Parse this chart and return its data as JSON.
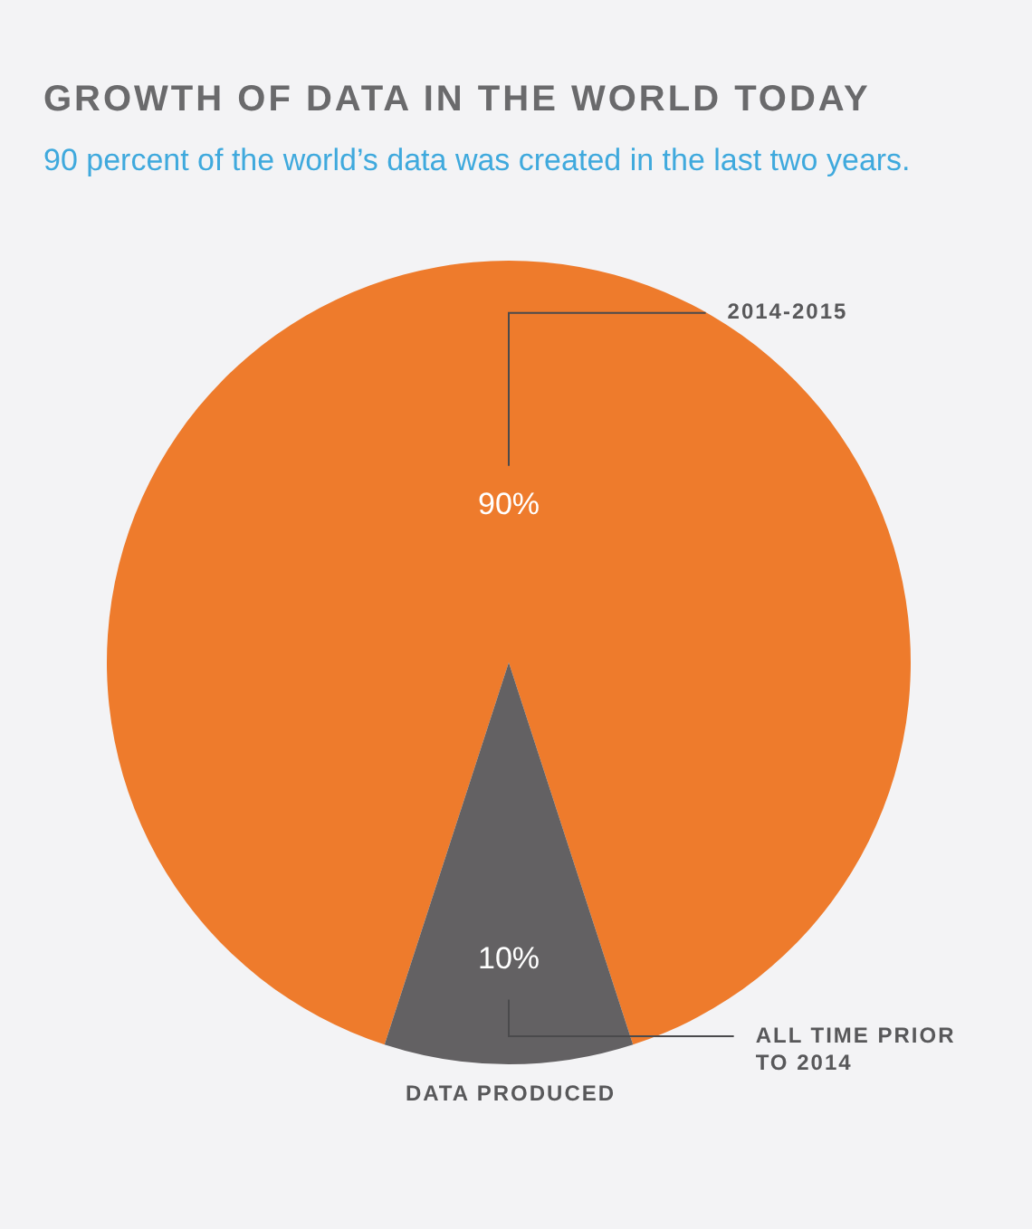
{
  "chart_data": {
    "type": "pie",
    "title": "GROWTH OF DATA IN THE WORLD TODAY",
    "subtitle": "90 percent of the world’s data was created in the last two years.",
    "xlabel": "DATA PRODUCED",
    "categories": [
      "2014-2015",
      "ALL TIME PRIOR TO 2014"
    ],
    "values": [
      90,
      10
    ],
    "value_labels": [
      "90%",
      "10%"
    ],
    "colors": [
      "#ee7b2c",
      "#636163"
    ]
  }
}
